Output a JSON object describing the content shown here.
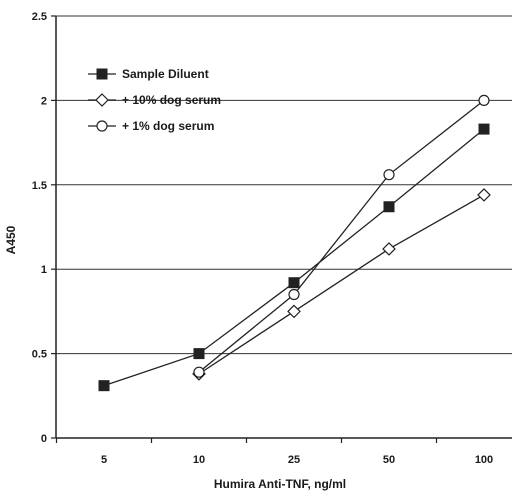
{
  "chart_data": {
    "type": "line",
    "title": "",
    "xlabel": "Humira Anti-TNF, ng/ml",
    "ylabel": "A450",
    "categories": [
      "5",
      "10",
      "25",
      "50",
      "100"
    ],
    "ylim": [
      0,
      2.5
    ],
    "yticks": [
      "0",
      "0.5",
      "1",
      "1.5",
      "2",
      "2.5"
    ],
    "grid": "horizontal",
    "legend_position": "top-left",
    "series": [
      {
        "name": "Sample Diluent",
        "marker": "square-filled",
        "color": "#222222",
        "values": [
          0.31,
          0.5,
          0.92,
          1.37,
          1.83
        ]
      },
      {
        "name": "+ 10% dog serum",
        "marker": "diamond-open",
        "color": "#222222",
        "values": [
          null,
          0.38,
          0.75,
          1.12,
          1.44
        ]
      },
      {
        "name": "+ 1% dog serum",
        "marker": "circle-open",
        "color": "#222222",
        "values": [
          null,
          0.39,
          0.85,
          1.56,
          2.0
        ]
      }
    ]
  }
}
